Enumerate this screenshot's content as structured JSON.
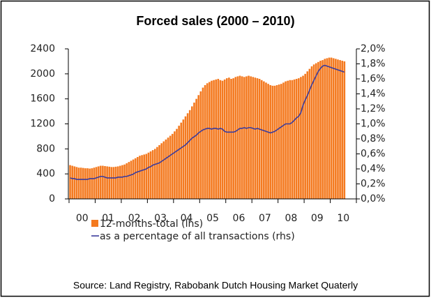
{
  "chart_data": {
    "type": "bar-line",
    "title": "Forced sales (2000 – 2010)",
    "source": "Source: Land Registry, Rabobank Dutch Housing Market Quaterly",
    "categories": [
      null,
      null,
      null,
      null,
      null,
      null,
      "00",
      null,
      null,
      null,
      null,
      null,
      null,
      null,
      null,
      null,
      null,
      null,
      "01",
      null,
      null,
      null,
      null,
      null,
      null,
      null,
      null,
      null,
      null,
      null,
      "02",
      null,
      null,
      null,
      null,
      null,
      null,
      null,
      null,
      null,
      null,
      null,
      "03",
      null,
      null,
      null,
      null,
      null,
      null,
      null,
      null,
      null,
      null,
      null,
      "04",
      null,
      null,
      null,
      null,
      null,
      null,
      null,
      null,
      null,
      null,
      null,
      "05",
      null,
      null,
      null,
      null,
      null,
      null,
      null,
      null,
      null,
      null,
      null,
      "06",
      null,
      null,
      null,
      null,
      null,
      null,
      null,
      null,
      null,
      null,
      null,
      "07",
      null,
      null,
      null,
      null,
      null,
      null,
      null,
      null,
      null,
      null,
      null,
      "08",
      null,
      null,
      null,
      null,
      null,
      null,
      null,
      null,
      null,
      null,
      null,
      "09",
      null,
      null,
      null,
      null,
      null,
      null,
      null,
      null,
      null,
      null,
      null,
      "10"
    ],
    "series": [
      {
        "name": "12-months-total (lhs)",
        "color": "#f47a20",
        "type": "bar",
        "values": [
          540,
          530,
          520,
          510,
          500,
          500,
          495,
          490,
          490,
          485,
          490,
          500,
          510,
          520,
          530,
          530,
          525,
          520,
          515,
          510,
          510,
          515,
          520,
          530,
          540,
          550,
          570,
          590,
          610,
          630,
          650,
          670,
          690,
          700,
          710,
          720,
          740,
          760,
          780,
          800,
          830,
          860,
          890,
          920,
          950,
          980,
          1010,
          1040,
          1080,
          1120,
          1170,
          1220,
          1270,
          1320,
          1370,
          1420,
          1480,
          1540,
          1600,
          1660,
          1720,
          1780,
          1820,
          1850,
          1870,
          1890,
          1900,
          1910,
          1920,
          1900,
          1890,
          1910,
          1930,
          1940,
          1920,
          1930,
          1950,
          1960,
          1970,
          1960,
          1950,
          1960,
          1970,
          1960,
          1950,
          1940,
          1930,
          1920,
          1900,
          1880,
          1860,
          1840,
          1820,
          1810,
          1810,
          1820,
          1830,
          1840,
          1860,
          1880,
          1890,
          1900,
          1900,
          1910,
          1920,
          1930,
          1950,
          1970,
          2000,
          2040,
          2080,
          2120,
          2150,
          2170,
          2190,
          2210,
          2220,
          2240,
          2250,
          2260,
          2260,
          2250,
          2240,
          2230,
          2220,
          2210,
          2200
        ]
      },
      {
        "name": "as a percentage of all transactions (rhs)",
        "color": "#3b3b9c",
        "type": "line",
        "axis": "y2",
        "values": [
          0.28,
          0.27,
          0.27,
          0.26,
          0.26,
          0.26,
          0.26,
          0.26,
          0.26,
          0.27,
          0.27,
          0.27,
          0.28,
          0.29,
          0.3,
          0.3,
          0.29,
          0.28,
          0.28,
          0.28,
          0.28,
          0.28,
          0.29,
          0.29,
          0.29,
          0.3,
          0.3,
          0.31,
          0.32,
          0.33,
          0.35,
          0.36,
          0.37,
          0.38,
          0.39,
          0.4,
          0.42,
          0.43,
          0.45,
          0.46,
          0.47,
          0.48,
          0.5,
          0.52,
          0.54,
          0.56,
          0.58,
          0.6,
          0.62,
          0.64,
          0.66,
          0.68,
          0.7,
          0.72,
          0.75,
          0.78,
          0.81,
          0.83,
          0.85,
          0.88,
          0.9,
          0.92,
          0.93,
          0.94,
          0.94,
          0.93,
          0.94,
          0.94,
          0.93,
          0.94,
          0.93,
          0.9,
          0.89,
          0.89,
          0.89,
          0.89,
          0.9,
          0.92,
          0.94,
          0.94,
          0.95,
          0.94,
          0.95,
          0.95,
          0.94,
          0.93,
          0.94,
          0.93,
          0.92,
          0.91,
          0.9,
          0.89,
          0.88,
          0.89,
          0.9,
          0.92,
          0.94,
          0.96,
          0.98,
          1.0,
          1.0,
          1.0,
          1.02,
          1.05,
          1.08,
          1.1,
          1.15,
          1.25,
          1.32,
          1.38,
          1.45,
          1.52,
          1.58,
          1.64,
          1.7,
          1.74,
          1.77,
          1.78,
          1.77,
          1.76,
          1.75,
          1.74,
          1.73,
          1.72,
          1.71,
          1.7,
          1.69
        ]
      }
    ],
    "ylim": [
      0,
      2400
    ],
    "yticks": [
      0,
      400,
      800,
      1200,
      1600,
      2000,
      2400
    ],
    "y2lim": [
      0,
      2.0
    ],
    "y2ticks": [
      {
        "value": 0.0,
        "label": "0,0%"
      },
      {
        "value": 0.2,
        "label": "0,2%"
      },
      {
        "value": 0.4,
        "label": "0,4%"
      },
      {
        "value": 0.6,
        "label": "0,6%"
      },
      {
        "value": 0.8,
        "label": "0,8%"
      },
      {
        "value": 1.0,
        "label": "1,0%"
      },
      {
        "value": 1.2,
        "label": "1,2%"
      },
      {
        "value": 1.4,
        "label": "1,4%"
      },
      {
        "value": 1.6,
        "label": "1,6%"
      },
      {
        "value": 1.8,
        "label": "1,8%"
      },
      {
        "value": 2.0,
        "label": "2,0%"
      }
    ],
    "grid": false,
    "legend": "bottom"
  }
}
